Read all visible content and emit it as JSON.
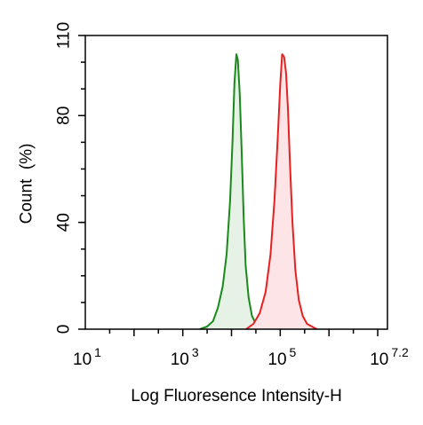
{
  "chart_data": {
    "type": "area",
    "xlabel": "Log Fluoresence Intensity-H",
    "ylabel": "Count  (%)",
    "xscale": "log10",
    "xlim": [
      1,
      7.2
    ],
    "ylim": [
      0,
      110
    ],
    "x_ticks": [
      {
        "base": "10",
        "exp": "1",
        "value": 1
      },
      {
        "base": "10",
        "exp": "3",
        "value": 3
      },
      {
        "base": "10",
        "exp": "5",
        "value": 5
      },
      {
        "base": "10",
        "exp": "7.2",
        "value": 7.2
      }
    ],
    "y_ticks": [
      {
        "label": "0",
        "value": 0
      },
      {
        "label": "40",
        "value": 40
      },
      {
        "label": "80",
        "value": 80
      },
      {
        "label": "110",
        "value": 110
      }
    ],
    "grid": false,
    "legend": "none",
    "series": [
      {
        "color": "#1a8a1a",
        "fill": "#e6f2e6",
        "x": [
          3.35,
          3.5,
          3.62,
          3.72,
          3.82,
          3.9,
          3.97,
          4.02,
          4.06,
          4.1,
          4.13,
          4.17,
          4.21,
          4.25,
          4.29,
          4.35,
          4.42,
          4.5,
          4.58,
          4.68
        ],
        "y": [
          0,
          1,
          3,
          8,
          16,
          28,
          48,
          70,
          92,
          103,
          101,
          88,
          66,
          42,
          24,
          12,
          5,
          2,
          1,
          0
        ]
      },
      {
        "color": "#e82020",
        "fill": "#fde4e6",
        "x": [
          4.3,
          4.45,
          4.58,
          4.7,
          4.8,
          4.88,
          4.95,
          5.0,
          5.04,
          5.08,
          5.12,
          5.16,
          5.2,
          5.25,
          5.31,
          5.38,
          5.46,
          5.55,
          5.65,
          5.75
        ],
        "y": [
          0,
          2,
          6,
          14,
          28,
          48,
          72,
          92,
          103,
          102,
          96,
          82,
          62,
          40,
          22,
          11,
          5,
          2,
          1,
          0
        ]
      }
    ]
  }
}
